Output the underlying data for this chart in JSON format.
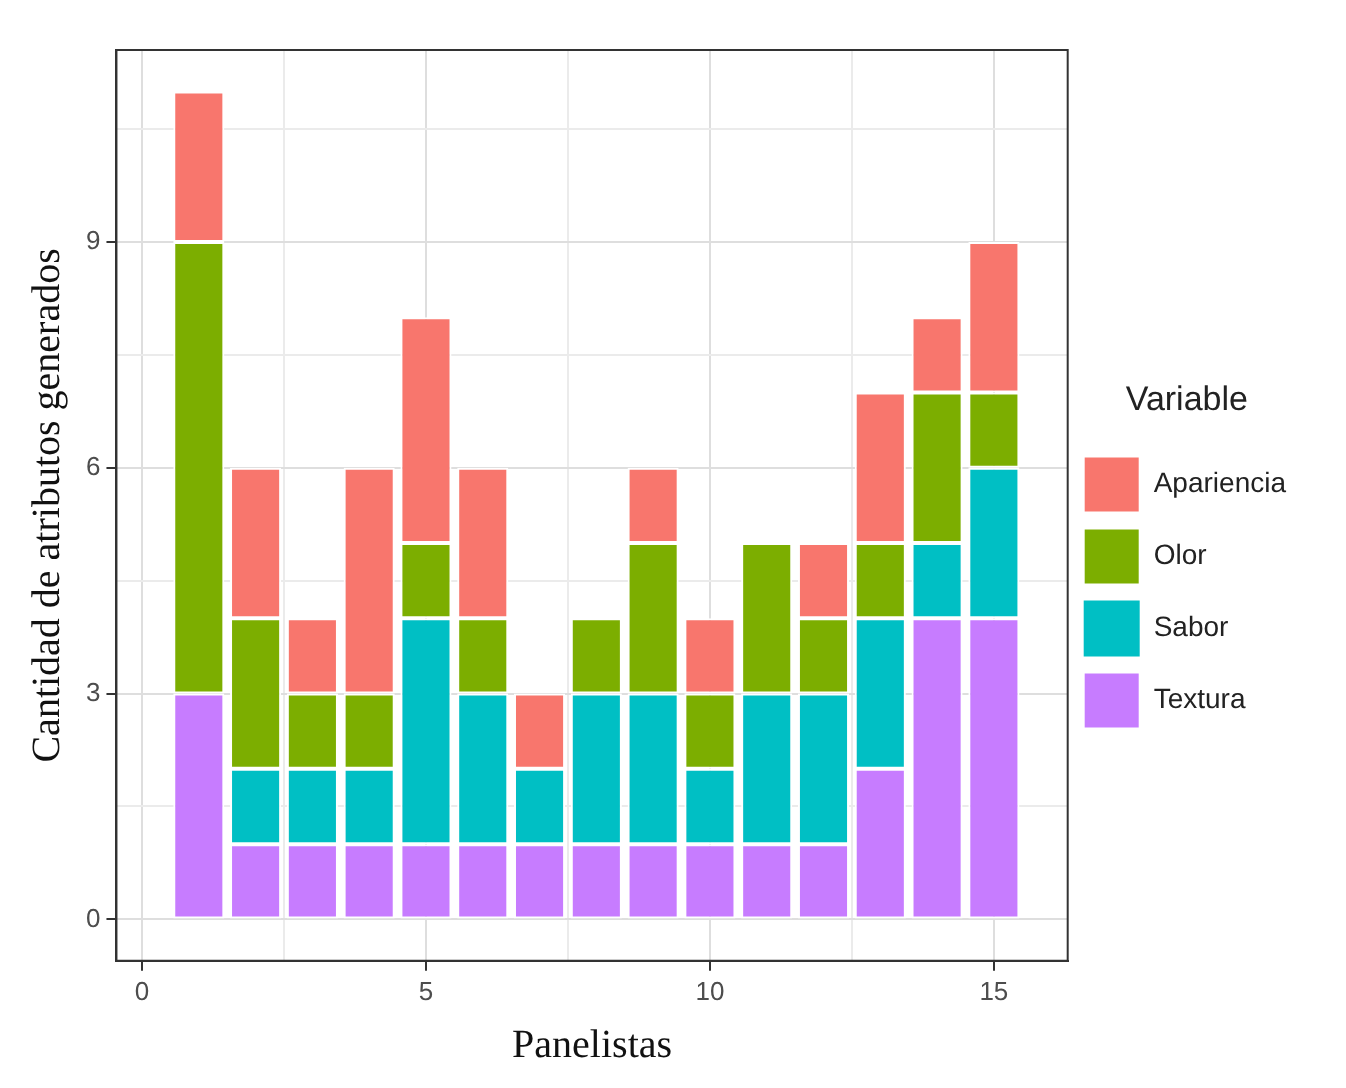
{
  "chart_data": {
    "type": "bar",
    "stacked": true,
    "xlabel": "Panelistas",
    "ylabel": "Cantidad de atributos generados",
    "legend_title": "Variable",
    "legend": "right",
    "grid": true,
    "x": [
      1,
      2,
      3,
      4,
      5,
      6,
      7,
      8,
      9,
      10,
      11,
      12,
      13,
      14,
      15
    ],
    "xlim": [
      -0.45,
      16.3
    ],
    "xticks": [
      0,
      {
        "value": 2.5,
        "label": null
      },
      5,
      {
        "value": 7.5,
        "label": null
      },
      10,
      {
        "value": 12.5,
        "label": null
      },
      15
    ],
    "ylim": [
      -0.55,
      11.55
    ],
    "yticks": [
      0,
      {
        "value": 1.5,
        "label": null
      },
      3,
      {
        "value": 4.5,
        "label": null
      },
      6,
      {
        "value": 7.5,
        "label": null
      },
      9,
      {
        "value": 10.5,
        "label": null
      }
    ],
    "series": [
      {
        "name": "Textura",
        "color": "#c77cff",
        "values": [
          3,
          1,
          1,
          1,
          1,
          1,
          1,
          1,
          1,
          1,
          1,
          1,
          2,
          4,
          4
        ]
      },
      {
        "name": "Sabor",
        "color": "#00bfc4",
        "values": [
          0,
          1,
          1,
          1,
          3,
          2,
          1,
          2,
          2,
          1,
          2,
          2,
          2,
          1,
          2
        ]
      },
      {
        "name": "Olor",
        "color": "#7cae00",
        "values": [
          6,
          2,
          1,
          1,
          1,
          1,
          0,
          1,
          2,
          1,
          2,
          1,
          1,
          2,
          1
        ]
      },
      {
        "name": "Apariencia",
        "color": "#f8766d",
        "values": [
          2,
          2,
          1,
          3,
          3,
          2,
          1,
          0,
          1,
          1,
          0,
          1,
          2,
          1,
          2
        ]
      }
    ]
  }
}
